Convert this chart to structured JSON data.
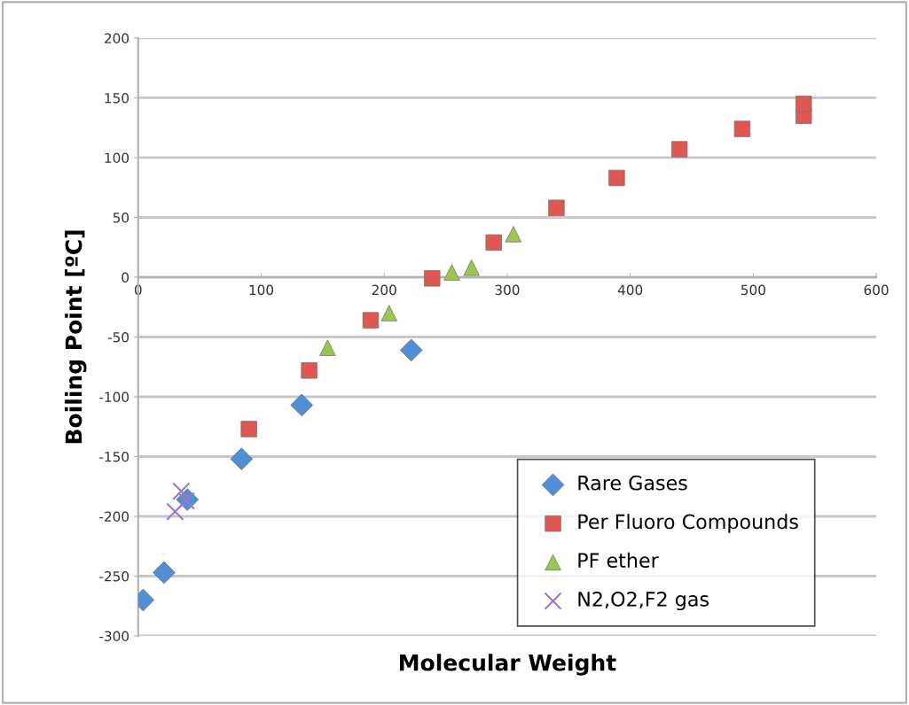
{
  "chart_data": {
    "type": "scatter",
    "xlabel": "Molecular Weight",
    "ylabel": "Boiling Point [ºC]",
    "xlim": [
      0,
      600
    ],
    "xticks": [
      0,
      100,
      200,
      300,
      400,
      500,
      600
    ],
    "ylim": [
      -300,
      200
    ],
    "yticks": [
      -300,
      -250,
      -200,
      -150,
      -100,
      -50,
      0,
      50,
      100,
      150,
      200
    ],
    "grid": "y",
    "legend": "bottom right",
    "series": [
      {
        "name": "Rare Gases",
        "color": "#4f8fd8",
        "marker": "diamond",
        "x": [
          4,
          21,
          40,
          84,
          133,
          222
        ],
        "values": [
          -270,
          -247,
          -186,
          -152,
          -107,
          -61
        ]
      },
      {
        "name": "Per Fluoro Compounds",
        "color": "#e05650",
        "marker": "square",
        "x": [
          90,
          139,
          189,
          239,
          289,
          340,
          389,
          440,
          491,
          541,
          541
        ],
        "values": [
          -127,
          -78,
          -36,
          -1,
          29,
          58,
          83,
          107,
          124,
          135,
          145
        ]
      },
      {
        "name": "PF ether",
        "color": "#9bc84c",
        "marker": "triangle",
        "x": [
          154,
          204,
          255,
          271,
          305
        ],
        "values": [
          -59,
          -30,
          4,
          8,
          36
        ]
      },
      {
        "name": "N2,O2,F2 gas",
        "color": "#9a79c4",
        "marker": "cross",
        "x": [
          30,
          35,
          39
        ],
        "values": [
          -196,
          -179,
          -187
        ]
      }
    ]
  }
}
